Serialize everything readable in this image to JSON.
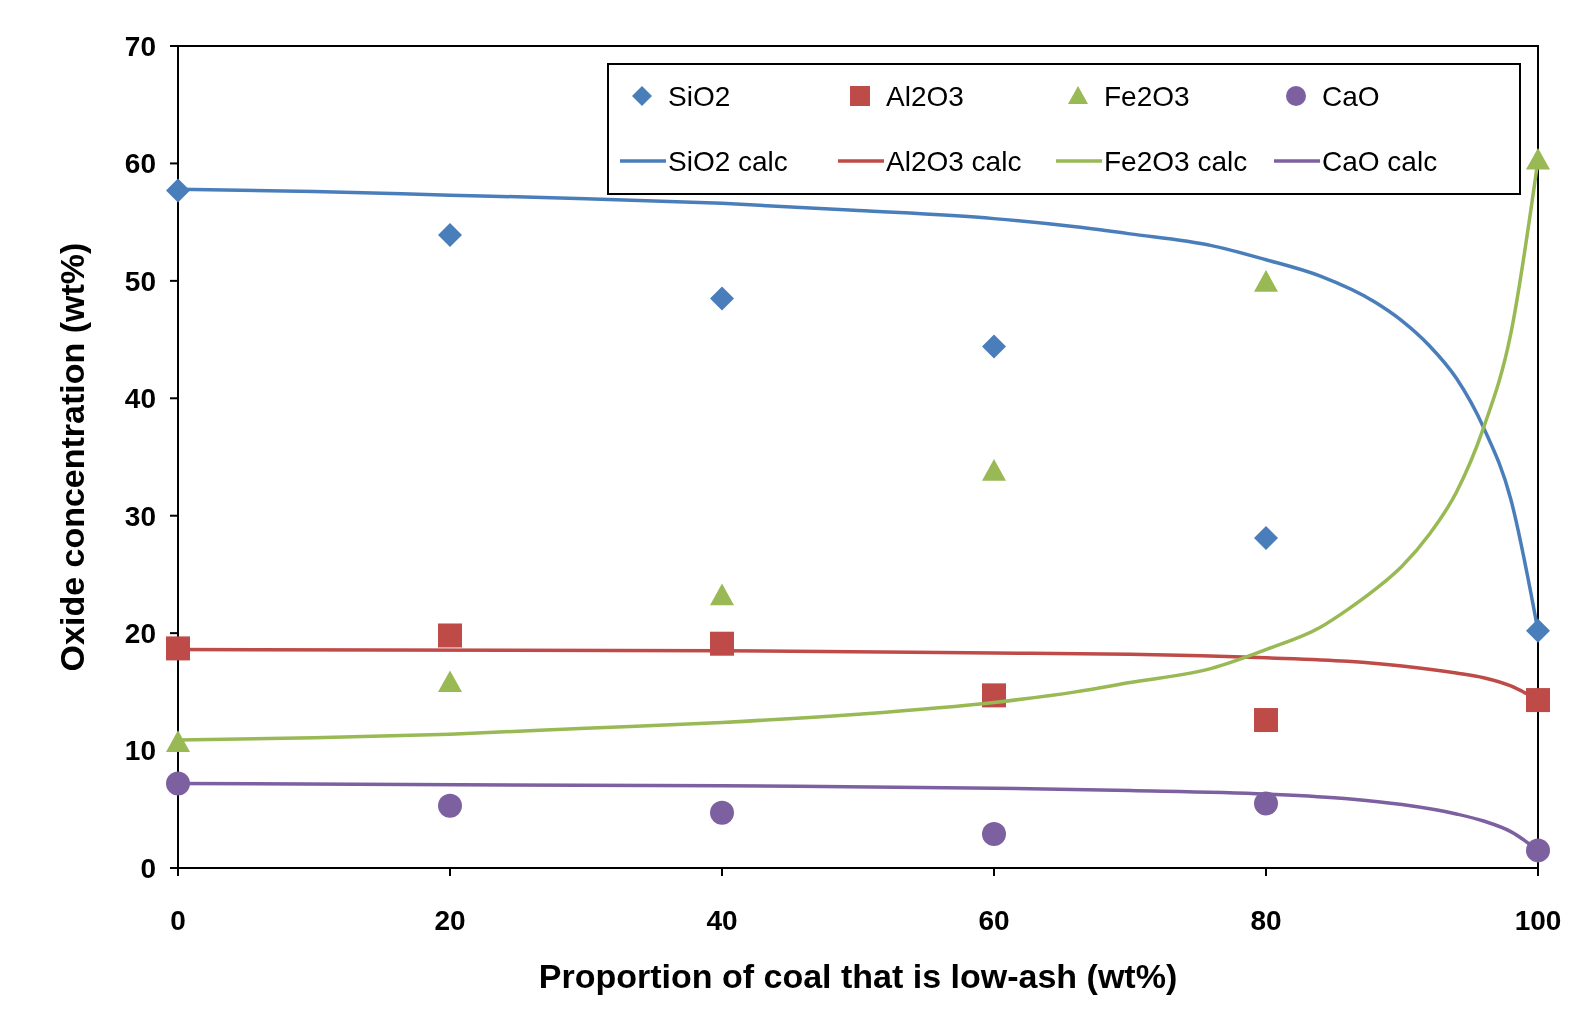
{
  "chart_data": {
    "type": "scatter",
    "xlabel": "Proportion of coal that is low-ash (wt%)",
    "ylabel": "Oxide concentration (wt%)",
    "xlim": [
      0,
      100
    ],
    "ylim": [
      0,
      70
    ],
    "xticks": [
      0,
      20,
      40,
      60,
      80,
      100
    ],
    "yticks": [
      0,
      10,
      20,
      30,
      40,
      50,
      60,
      70
    ],
    "grid": false,
    "legend": "top right",
    "x": [
      0,
      20,
      40,
      60,
      80,
      100
    ],
    "series": [
      {
        "name": "SiO2",
        "marker": "diamond",
        "color": "#4a7ebb",
        "values": [
          57.7,
          53.9,
          48.5,
          44.4,
          28.1,
          20.2
        ]
      },
      {
        "name": "Al2O3",
        "marker": "square",
        "color": "#be4b48",
        "values": [
          18.7,
          19.8,
          19.1,
          14.7,
          12.6,
          14.3
        ]
      },
      {
        "name": "Fe2O3",
        "marker": "triangle",
        "color": "#98b954",
        "values": [
          10.7,
          15.8,
          23.2,
          33.8,
          49.9,
          60.3
        ]
      },
      {
        "name": "CaO",
        "marker": "circle",
        "color": "#7d60a0",
        "values": [
          7.2,
          5.3,
          4.7,
          2.9,
          5.5,
          1.5
        ]
      },
      {
        "name": "SiO2 calc",
        "type": "line",
        "marker": "none",
        "color": "#4a7ebb",
        "x": [
          0,
          10,
          20,
          30,
          40,
          50,
          60,
          66,
          70,
          76,
          80,
          84,
          88,
          90,
          92,
          94,
          96,
          98,
          100
        ],
        "values": [
          57.8,
          57.6,
          57.3,
          57.0,
          56.6,
          56.0,
          55.3,
          54.6,
          54.0,
          53.0,
          51.8,
          50.4,
          48.2,
          46.6,
          44.5,
          41.7,
          37.5,
          31.4,
          20.2
        ]
      },
      {
        "name": "Al2O3 calc",
        "type": "line",
        "marker": "none",
        "color": "#be4b48",
        "x": [
          0,
          40,
          60,
          70,
          80,
          86,
          90,
          94,
          96,
          98,
          100
        ],
        "values": [
          18.6,
          18.5,
          18.3,
          18.2,
          17.9,
          17.6,
          17.2,
          16.6,
          16.2,
          15.5,
          14.3
        ]
      },
      {
        "name": "Fe2O3 calc",
        "type": "line",
        "marker": "none",
        "color": "#98b954",
        "x": [
          0,
          10,
          20,
          30,
          40,
          50,
          60,
          66,
          70,
          76,
          80,
          84,
          86,
          88,
          90,
          92,
          94,
          96,
          98,
          100
        ],
        "values": [
          10.9,
          11.1,
          11.4,
          11.9,
          12.4,
          13.1,
          14.1,
          15.0,
          15.8,
          17.0,
          18.6,
          20.5,
          22.0,
          23.7,
          25.7,
          28.4,
          32.0,
          37.5,
          45.5,
          60.3
        ]
      },
      {
        "name": "CaO calc",
        "type": "line",
        "marker": "none",
        "color": "#7d60a0",
        "x": [
          0,
          40,
          60,
          70,
          80,
          86,
          90,
          94,
          96,
          98,
          100
        ],
        "values": [
          7.2,
          7.0,
          6.8,
          6.6,
          6.3,
          5.9,
          5.4,
          4.6,
          4.0,
          3.1,
          1.5
        ]
      }
    ]
  }
}
